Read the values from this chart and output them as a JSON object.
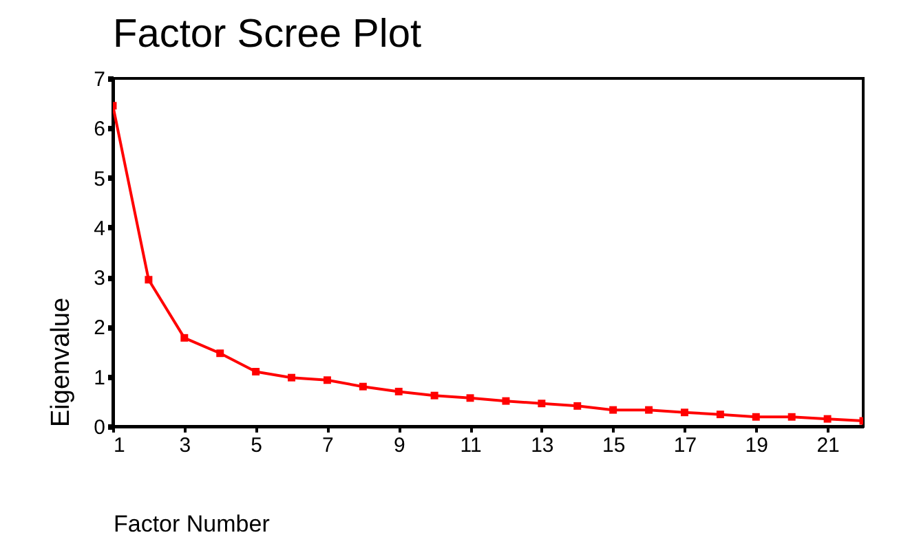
{
  "chart_data": {
    "type": "line",
    "title": "Factor Scree Plot",
    "xlabel": "Factor Number",
    "ylabel": "Eigenvalue",
    "x": [
      1,
      2,
      3,
      4,
      5,
      6,
      7,
      8,
      9,
      10,
      11,
      12,
      13,
      14,
      15,
      16,
      17,
      18,
      19,
      20,
      21,
      22
    ],
    "series": [
      {
        "color": "#ff0000",
        "values": [
          6.45,
          2.95,
          1.78,
          1.47,
          1.1,
          0.98,
          0.93,
          0.8,
          0.7,
          0.62,
          0.57,
          0.51,
          0.46,
          0.41,
          0.33,
          0.33,
          0.28,
          0.24,
          0.19,
          0.19,
          0.15,
          0.11
        ]
      }
    ],
    "xlim": [
      1,
      22
    ],
    "xticks": [
      1,
      3,
      5,
      7,
      9,
      11,
      13,
      15,
      17,
      19,
      21
    ],
    "ylim": [
      0,
      7
    ],
    "yticks": [
      0,
      1,
      2,
      3,
      4,
      5,
      6,
      7
    ],
    "grid": false,
    "marker": "square",
    "line_style": "solid"
  }
}
